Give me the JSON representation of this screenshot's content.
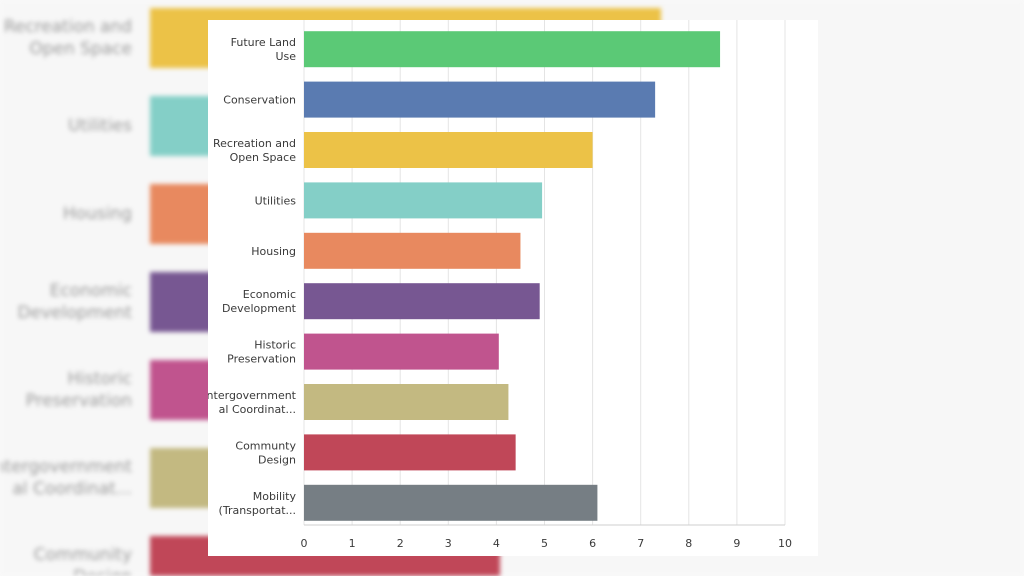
{
  "chart_data": {
    "type": "bar",
    "orientation": "horizontal",
    "categories": [
      [
        "Future Land",
        "Use"
      ],
      [
        "Conservation"
      ],
      [
        "Recreation and",
        "Open Space"
      ],
      [
        "Utilities"
      ],
      [
        "Housing"
      ],
      [
        "Economic",
        "Development"
      ],
      [
        "Historic",
        "Preservation"
      ],
      [
        "Intergovernment",
        "al Coordinat..."
      ],
      [
        "Communty",
        "Design"
      ],
      [
        "Mobility",
        "(Transportat..."
      ]
    ],
    "values": [
      8.65,
      7.3,
      6.0,
      4.95,
      4.5,
      4.9,
      4.05,
      4.25,
      4.4,
      6.1
    ],
    "colors": [
      "#5bc976",
      "#5a7bb1",
      "#ecc247",
      "#84cfc7",
      "#e8895f",
      "#775792",
      "#c0548e",
      "#c3b981",
      "#c04758",
      "#767e84"
    ],
    "xticks": [
      "0",
      "1",
      "2",
      "3",
      "4",
      "5",
      "6",
      "7",
      "8",
      "9",
      "10"
    ],
    "xlim": [
      0,
      10
    ],
    "grid": true,
    "title": "",
    "xlabel": "",
    "ylabel": ""
  },
  "background": {
    "labels": [
      [
        "Recreation and",
        "Open Space"
      ],
      [
        "Utilities"
      ],
      [
        "Housing"
      ],
      [
        "Economic",
        "Development"
      ],
      [
        "Historic",
        "Preservation"
      ],
      [
        "Intergovernment",
        "al Coordinat..."
      ],
      [
        "Community",
        "Design"
      ]
    ],
    "colors": [
      "#ecc247",
      "#84cfc7",
      "#e8895f",
      "#775792",
      "#c0548e",
      "#c3b981",
      "#c04758"
    ],
    "values": [
      7.3,
      4.95,
      4.5,
      4.9,
      4.05,
      4.25,
      5.0
    ]
  }
}
